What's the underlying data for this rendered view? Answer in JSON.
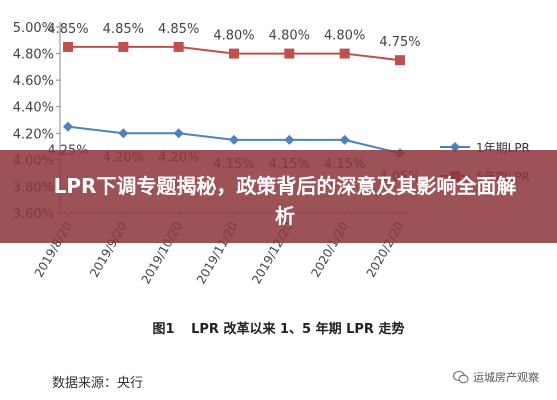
{
  "chart_data": {
    "type": "line",
    "categories": [
      "2019/8/20",
      "2019/9/20",
      "2019/10/20",
      "2019/11/20",
      "2019/12/20",
      "2020/1/20",
      "2020/2/20"
    ],
    "series": [
      {
        "name": "5年期LPR",
        "color": "#c0504d",
        "values": [
          4.85,
          4.85,
          4.85,
          4.8,
          4.8,
          4.8,
          4.75
        ],
        "labels": [
          "4.85%",
          "4.85%",
          "4.85%",
          "4.80%",
          "4.80%",
          "4.80%",
          "4.75%"
        ]
      },
      {
        "name": "1年期LPR",
        "color": "#4f81bd",
        "values": [
          4.25,
          4.2,
          4.2,
          4.15,
          4.15,
          4.15,
          4.05
        ],
        "labels": [
          "4.25%",
          "4.20%",
          "4.20%",
          "4.15%",
          "4.15%",
          "4.15%",
          "4.05%"
        ]
      }
    ],
    "y_ticks": [
      "3.60%",
      "3.80%",
      "4.00%",
      "4.20%",
      "4.40%",
      "4.60%",
      "4.80%",
      "5.00%"
    ],
    "ylim": [
      3.6,
      5.0
    ],
    "grid": false,
    "legend_placement": "right"
  },
  "banner": {
    "title": "LPR下调专题揭秘，政策背后的深意及其影响全面解析"
  },
  "caption": {
    "fig": "图1",
    "text": "LPR 改革以来 1、5 年期 LPR 走势"
  },
  "source": "数据来源：央行",
  "watermark": "运城房产观察"
}
